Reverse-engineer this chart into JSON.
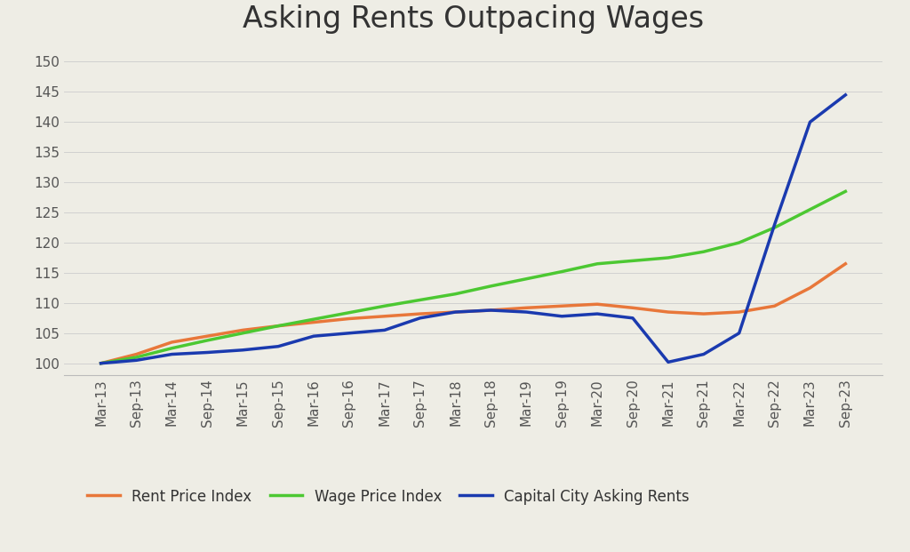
{
  "title": "Asking Rents Outpacing Wages",
  "background_color": "#eeede5",
  "x_labels": [
    "Mar-13",
    "Sep-13",
    "Mar-14",
    "Sep-14",
    "Mar-15",
    "Sep-15",
    "Mar-16",
    "Sep-16",
    "Mar-17",
    "Sep-17",
    "Mar-18",
    "Sep-18",
    "Mar-19",
    "Sep-19",
    "Mar-20",
    "Sep-20",
    "Mar-21",
    "Sep-21",
    "Mar-22",
    "Sep-22",
    "Mar-23",
    "Sep-23"
  ],
  "rent_price_index": [
    100.0,
    101.5,
    103.5,
    104.5,
    105.5,
    106.2,
    106.8,
    107.4,
    107.8,
    108.2,
    108.5,
    108.8,
    109.2,
    109.5,
    109.8,
    109.2,
    108.5,
    108.2,
    108.5,
    109.5,
    112.5,
    116.5
  ],
  "wage_price_index": [
    100.0,
    101.0,
    102.5,
    103.8,
    105.0,
    106.2,
    107.3,
    108.4,
    109.5,
    110.5,
    111.5,
    112.8,
    114.0,
    115.2,
    116.5,
    117.0,
    117.5,
    118.5,
    120.0,
    122.5,
    125.5,
    128.5
  ],
  "capital_city_asking_rents": [
    100.0,
    100.5,
    101.5,
    101.8,
    102.2,
    102.8,
    104.5,
    105.0,
    105.5,
    107.5,
    108.5,
    108.8,
    108.5,
    107.8,
    108.2,
    107.5,
    100.2,
    101.5,
    105.0,
    123.0,
    140.0,
    144.5
  ],
  "rent_color": "#E8773A",
  "wage_color": "#4CC832",
  "asking_color": "#1A3AAF",
  "ylim_min": 98,
  "ylim_max": 152,
  "yticks": [
    100,
    105,
    110,
    115,
    120,
    125,
    130,
    135,
    140,
    145,
    150
  ],
  "legend_labels": [
    "Rent Price Index",
    "Wage Price Index",
    "Capital City Asking Rents"
  ],
  "line_width": 2.5,
  "title_fontsize": 24,
  "tick_fontsize": 11,
  "legend_fontsize": 12
}
